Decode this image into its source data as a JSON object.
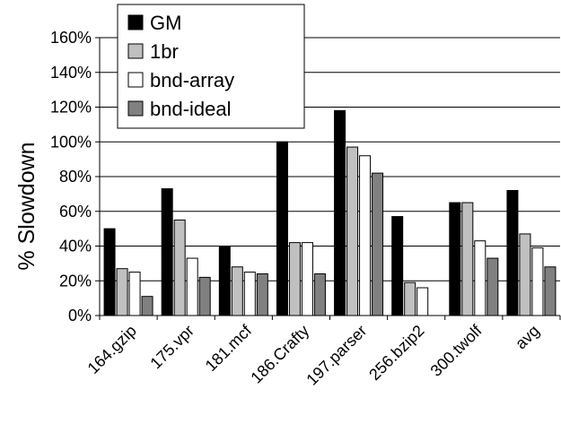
{
  "chart_data": {
    "type": "bar",
    "title": "",
    "xlabel": "",
    "ylabel": "% Slowdown",
    "ylim": [
      0,
      160
    ],
    "yticks": [
      0,
      20,
      40,
      60,
      80,
      100,
      120,
      140,
      160
    ],
    "ytick_labels": [
      "0%",
      "20%",
      "40%",
      "60%",
      "80%",
      "100%",
      "120%",
      "140%",
      "160%"
    ],
    "grid": "horizontal",
    "legend_position": "top-left",
    "categories": [
      "164.gzip",
      "175.vpr",
      "181.mcf",
      "186.Crafty",
      "197.parser",
      "256.bzip2",
      "300.twolf",
      "avg"
    ],
    "series": [
      {
        "name": "GM",
        "color": "#000000",
        "values": [
          50,
          73,
          40,
          100,
          118,
          57,
          65,
          72
        ]
      },
      {
        "name": "1br",
        "color": "#c0c0c0",
        "values": [
          27,
          55,
          28,
          42,
          97,
          19,
          65,
          47
        ]
      },
      {
        "name": "bnd-array",
        "color": "#ffffff",
        "values": [
          25,
          33,
          25,
          42,
          92,
          16,
          43,
          39
        ]
      },
      {
        "name": "bnd-ideal",
        "color": "#808080",
        "values": [
          11,
          22,
          24,
          24,
          82,
          0,
          33,
          28
        ]
      }
    ]
  }
}
